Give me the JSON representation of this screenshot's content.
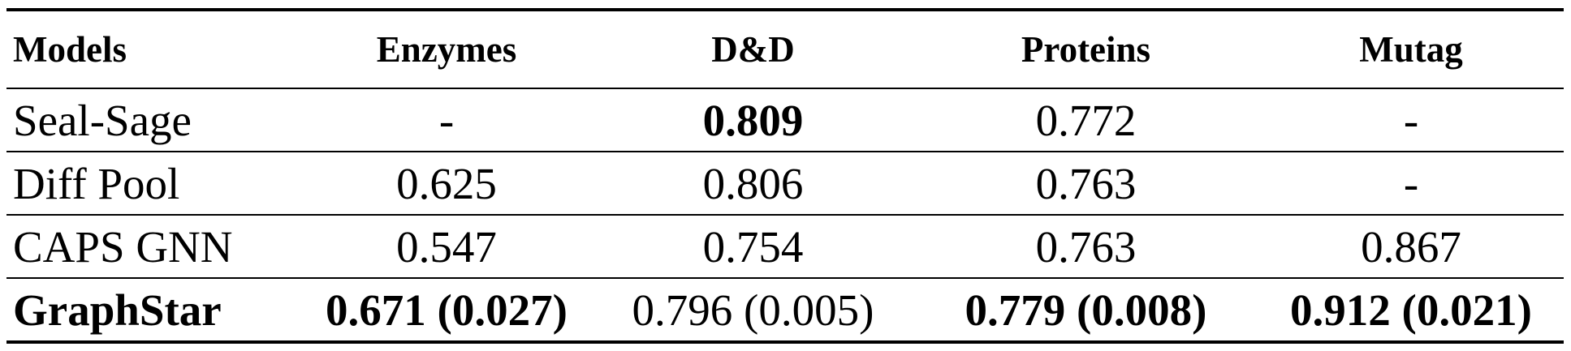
{
  "table": {
    "header": [
      "Models",
      "Enzymes",
      "D&D",
      "Proteins",
      "Mutag"
    ],
    "rows": [
      [
        "Seal-Sage",
        "-",
        "0.809",
        "0.772",
        "-"
      ],
      [
        "Diff Pool",
        "0.625",
        "0.806",
        "0.763",
        "-"
      ],
      [
        "CAPS GNN",
        "0.547",
        "0.754",
        "0.763",
        "0.867"
      ],
      [
        "GraphStar",
        "0.671 (0.027)",
        "0.796 (0.005)",
        "0.779 (0.008)",
        "0.912 (0.021)"
      ]
    ]
  }
}
